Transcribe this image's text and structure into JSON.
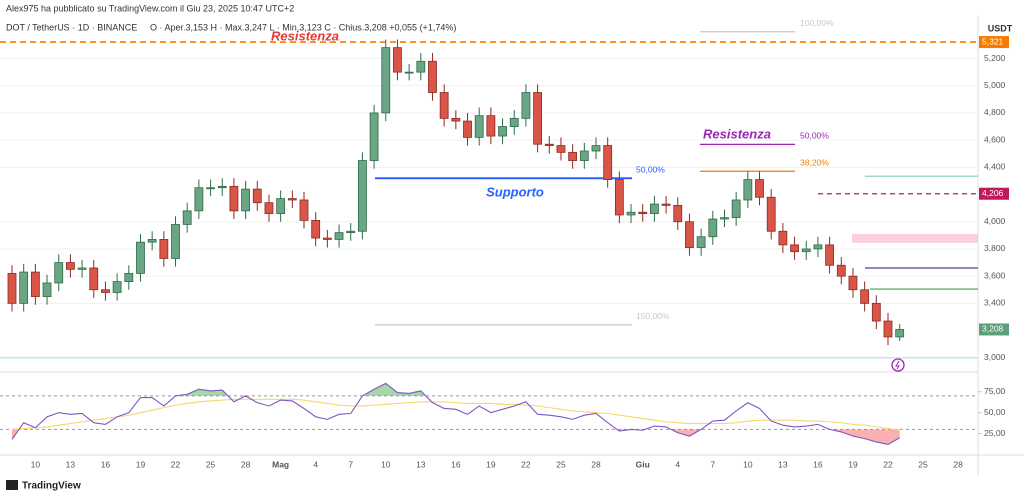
{
  "header": {
    "author": "Alex975 ha pubblicato su TradingView.com il Giu 23, 2025 10:47 UTC+2",
    "symbol": "DOT / TetherUS · 1D · BINANCE",
    "ohlc": "O · Aper.3,153  H · Max.3,247  L · Min.3,123  C · Chius.3,208  +0,055 (+1,74%)",
    "currency": "USDT",
    "brand": "TradingView"
  },
  "chart_data": [
    {
      "type": "candlestick",
      "categories": [
        null,
        null,
        "10",
        null,
        null,
        "13",
        null,
        null,
        "16",
        null,
        null,
        "19",
        null,
        null,
        "22",
        null,
        null,
        "25",
        null,
        null,
        "28",
        null,
        null,
        "Mag",
        null,
        null,
        "4",
        null,
        null,
        "7",
        null,
        null,
        "10",
        null,
        null,
        "13",
        null,
        null,
        "16",
        null,
        null,
        "19",
        null,
        null,
        "22",
        null,
        null,
        "25",
        null,
        null,
        "28",
        null,
        null,
        null,
        "Giu",
        null,
        null,
        "4",
        null,
        null,
        "7",
        null,
        null,
        "10",
        null,
        null,
        "13",
        null,
        null,
        "16",
        null,
        null,
        "19",
        null,
        null,
        "22",
        null,
        null,
        "25",
        null,
        null,
        "28",
        null
      ],
      "open": [
        3620,
        3400,
        3630,
        3450,
        3550,
        3700,
        3650,
        3660,
        3500,
        3480,
        3560,
        3620,
        3850,
        3870,
        3730,
        3980,
        4080,
        4250,
        4250,
        4260,
        4080,
        4240,
        4140,
        4060,
        4170,
        4160,
        4010,
        3880,
        3870,
        3920,
        3930,
        4450,
        4800,
        5280,
        5100,
        5100,
        5180,
        4950,
        4760,
        4740,
        4620,
        4780,
        4630,
        4700,
        4760,
        4950,
        4570,
        4560,
        4510,
        4450,
        4520,
        4560,
        4310,
        4050,
        4070,
        4060,
        4130,
        4120,
        4000,
        3810,
        3890,
        4020,
        4030,
        4160,
        4310,
        4180,
        3930,
        3830,
        3780,
        3800,
        3830,
        3680,
        3600,
        3500,
        3400,
        3270,
        3153,
        null,
        null,
        null,
        null,
        null,
        null
      ],
      "high": [
        3680,
        3690,
        3690,
        3610,
        3760,
        3760,
        3720,
        3720,
        3560,
        3620,
        3680,
        3910,
        3930,
        3930,
        4040,
        4140,
        4310,
        4310,
        4320,
        4320,
        4300,
        4300,
        4200,
        4230,
        4230,
        4220,
        4070,
        3940,
        3980,
        3990,
        4510,
        4860,
        5340,
        5340,
        5160,
        5240,
        5240,
        5010,
        4820,
        4800,
        4840,
        4840,
        4760,
        4820,
        5010,
        5010,
        4630,
        4620,
        4570,
        4580,
        4620,
        4620,
        4370,
        4130,
        4130,
        4190,
        4190,
        4180,
        4060,
        3950,
        4080,
        4090,
        4220,
        4370,
        4370,
        4240,
        3990,
        3890,
        3860,
        3890,
        3890,
        3740,
        3660,
        3560,
        3460,
        3330,
        3247,
        null,
        null,
        null,
        null,
        null,
        null
      ],
      "low": [
        3340,
        3340,
        3390,
        3390,
        3490,
        3590,
        3590,
        3440,
        3420,
        3420,
        3500,
        3560,
        3790,
        3670,
        3670,
        3920,
        4020,
        4190,
        4190,
        4020,
        4020,
        4080,
        4000,
        4000,
        4100,
        3950,
        3820,
        3810,
        3810,
        3860,
        3870,
        4390,
        4740,
        5040,
        5040,
        5040,
        4890,
        4700,
        4680,
        4560,
        4560,
        4570,
        4570,
        4640,
        4700,
        4510,
        4500,
        4450,
        4390,
        4390,
        4460,
        4250,
        3990,
        3990,
        4000,
        4000,
        4060,
        3940,
        3750,
        3750,
        3830,
        3960,
        3970,
        4100,
        4120,
        3870,
        3770,
        3720,
        3720,
        3740,
        3620,
        3540,
        3440,
        3340,
        3210,
        3093,
        3123,
        null,
        null,
        null,
        null,
        null,
        null
      ],
      "close": [
        3400,
        3630,
        3450,
        3550,
        3700,
        3650,
        3660,
        3500,
        3480,
        3560,
        3620,
        3850,
        3870,
        3730,
        3980,
        4080,
        4250,
        4250,
        4260,
        4080,
        4240,
        4140,
        4060,
        4170,
        4160,
        4010,
        3880,
        3870,
        3920,
        3930,
        4450,
        4800,
        5280,
        5100,
        5100,
        5180,
        4950,
        4760,
        4740,
        4620,
        4780,
        4630,
        4700,
        4760,
        4950,
        4570,
        4560,
        4510,
        4450,
        4520,
        4560,
        4310,
        4050,
        4070,
        4060,
        4130,
        4120,
        4000,
        3810,
        3890,
        4020,
        4030,
        4160,
        4310,
        4180,
        3930,
        3830,
        3780,
        3800,
        3830,
        3680,
        3600,
        3500,
        3400,
        3270,
        3153,
        3208,
        null,
        null,
        null,
        null,
        null,
        null
      ],
      "up_color": "#6aa584",
      "down_color": "#d95548",
      "ylim": [
        2910,
        5520
      ],
      "yticks": [
        {
          "value": 3000,
          "label": "3,000"
        },
        {
          "value": 3400,
          "label": "3,400"
        },
        {
          "value": 3600,
          "label": "3,600"
        },
        {
          "value": 3800,
          "label": "3,800"
        },
        {
          "value": 4000,
          "label": "4,000"
        },
        {
          "value": 4400,
          "label": "4,400"
        },
        {
          "value": 4600,
          "label": "4,600"
        },
        {
          "value": 4800,
          "label": "4,800"
        },
        {
          "value": 5000,
          "label": "5,000"
        },
        {
          "value": 5200,
          "label": "5,200"
        }
      ],
      "grid": true,
      "last_price": {
        "value": 3208,
        "label": "3,208",
        "color": "#5f9e7b"
      },
      "overlays": [
        {
          "value": 5321,
          "color": "#f57c00",
          "label": "5,321"
        },
        {
          "value": 5397,
          "color": "#c8c8c8",
          "label": "100,00%"
        },
        {
          "value": 4569,
          "color": "#9c27b0",
          "label": "50,00%"
        },
        {
          "value": 4371,
          "color": "#f57c00",
          "label": "38,20%"
        },
        {
          "value": 4320,
          "color": "#2962ff",
          "label": "50,00%"
        },
        {
          "value": 3242,
          "color": "#c8c8c8",
          "label": "150,00%"
        },
        {
          "value": 4206,
          "color": "#c2185b",
          "label": "4,206"
        },
        {
          "value": 4335,
          "color": "#80cbc4"
        },
        {
          "value": 3660,
          "color": "#5e35b1"
        },
        {
          "value": 3505,
          "color": "#43a047"
        },
        {
          "value": 3000,
          "color": "#b3e5fc"
        }
      ],
      "zone": {
        "from": 3845,
        "to": 3910,
        "color": "#f8bbd0"
      },
      "annotations": [
        {
          "text": "Resistenza",
          "color": "#e53935"
        },
        {
          "text": "Supporto",
          "color": "#2962ff"
        },
        {
          "text": "Resistenza",
          "color": "#9c27b0"
        }
      ]
    },
    {
      "type": "line",
      "series": [
        {
          "color": "#7e57c2",
          "values": [
            18,
            38,
            32,
            45,
            50,
            48,
            49,
            38,
            36,
            45,
            50,
            68,
            68,
            58,
            70,
            72,
            78,
            76,
            77,
            63,
            70,
            62,
            58,
            65,
            64,
            55,
            45,
            42,
            48,
            49,
            70,
            78,
            85,
            74,
            73,
            76,
            62,
            55,
            54,
            48,
            58,
            50,
            54,
            58,
            63,
            48,
            47,
            45,
            42,
            47,
            49,
            38,
            28,
            30,
            29,
            34,
            33,
            26,
            22,
            30,
            40,
            41,
            52,
            62,
            55,
            40,
            35,
            33,
            34,
            36,
            30,
            27,
            22,
            19,
            15,
            12,
            20,
            null,
            null,
            null,
            null,
            null,
            null
          ]
        },
        {
          "color": "#f5d76e",
          "values": [
            30,
            31,
            32,
            33,
            35,
            37,
            39,
            41,
            43,
            45,
            47,
            50,
            53,
            56,
            59,
            61,
            63,
            64,
            65,
            66,
            66,
            66,
            66,
            66,
            66,
            65,
            63,
            61,
            59,
            58,
            58,
            59,
            60,
            61,
            62,
            63,
            63,
            63,
            62,
            61,
            61,
            61,
            60,
            60,
            59,
            58,
            56,
            54,
            52,
            51,
            50,
            49,
            47,
            45,
            43,
            41,
            39,
            38,
            37,
            37,
            37,
            37,
            38,
            40,
            41,
            41,
            41,
            41,
            40,
            40,
            39,
            38,
            36,
            35,
            33,
            31,
            29,
            null,
            null,
            null,
            null,
            null,
            null
          ]
        }
      ],
      "ylim": [
        3,
        95
      ],
      "yticks": [
        {
          "value": 75,
          "label": "75,00"
        },
        {
          "value": 50,
          "label": "50,00"
        },
        {
          "value": 25,
          "label": "25,00"
        }
      ],
      "bands": [
        70,
        30
      ]
    }
  ]
}
